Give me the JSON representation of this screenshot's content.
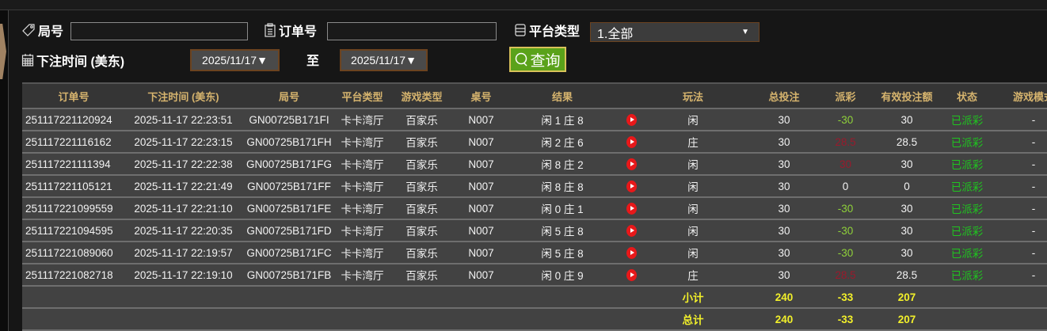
{
  "filters": {
    "round_label": "局号",
    "round_value": "",
    "order_label": "订单号",
    "order_value": "",
    "platform_label": "平台类型",
    "platform_value": "1.全部",
    "time_label": "下注时间 (美东)",
    "date_from": "2025/11/17▼",
    "to_label": "至",
    "date_to": "2025/11/17▼",
    "query_label": "查询"
  },
  "table": {
    "headers": [
      "订单号",
      "下注时间 (美东)",
      "局号",
      "平台类型",
      "游戏类型",
      "桌号",
      "结果",
      "",
      "玩法",
      "总投注",
      "派彩",
      "有效投注额",
      "状态",
      "游戏模式"
    ],
    "rows": [
      {
        "order": "251117221120924",
        "time": "2025-11-17 22:23:51",
        "round": "GN00725B171FI",
        "platform": "卡卡湾厅",
        "game": "百家乐",
        "table": "N007",
        "result": "闲 1 庄 8",
        "play": "闲",
        "bet": "30",
        "payout": "-30",
        "payout_color": "green",
        "valid": "30",
        "status": "已派彩",
        "mode": "-"
      },
      {
        "order": "251117221116162",
        "time": "2025-11-17 22:23:15",
        "round": "GN00725B171FH",
        "platform": "卡卡湾厅",
        "game": "百家乐",
        "table": "N007",
        "result": "闲 2 庄 6",
        "play": "庄",
        "bet": "30",
        "payout": "28.5",
        "payout_color": "red",
        "valid": "28.5",
        "status": "已派彩",
        "mode": "-"
      },
      {
        "order": "251117221111394",
        "time": "2025-11-17 22:22:38",
        "round": "GN00725B171FG",
        "platform": "卡卡湾厅",
        "game": "百家乐",
        "table": "N007",
        "result": "闲 8 庄 2",
        "play": "闲",
        "bet": "30",
        "payout": "30",
        "payout_color": "red",
        "valid": "30",
        "status": "已派彩",
        "mode": "-"
      },
      {
        "order": "251117221105121",
        "time": "2025-11-17 22:21:49",
        "round": "GN00725B171FF",
        "platform": "卡卡湾厅",
        "game": "百家乐",
        "table": "N007",
        "result": "闲 8 庄 8",
        "play": "闲",
        "bet": "30",
        "payout": "0",
        "payout_color": "white",
        "valid": "0",
        "status": "已派彩",
        "mode": "-"
      },
      {
        "order": "251117221099559",
        "time": "2025-11-17 22:21:10",
        "round": "GN00725B171FE",
        "platform": "卡卡湾厅",
        "game": "百家乐",
        "table": "N007",
        "result": "闲 0 庄 1",
        "play": "闲",
        "bet": "30",
        "payout": "-30",
        "payout_color": "green",
        "valid": "30",
        "status": "已派彩",
        "mode": "-"
      },
      {
        "order": "251117221094595",
        "time": "2025-11-17 22:20:35",
        "round": "GN00725B171FD",
        "platform": "卡卡湾厅",
        "game": "百家乐",
        "table": "N007",
        "result": "闲 5 庄 8",
        "play": "闲",
        "bet": "30",
        "payout": "-30",
        "payout_color": "green",
        "valid": "30",
        "status": "已派彩",
        "mode": "-"
      },
      {
        "order": "251117221089060",
        "time": "2025-11-17 22:19:57",
        "round": "GN00725B171FC",
        "platform": "卡卡湾厅",
        "game": "百家乐",
        "table": "N007",
        "result": "闲 5 庄 8",
        "play": "闲",
        "bet": "30",
        "payout": "-30",
        "payout_color": "green",
        "valid": "30",
        "status": "已派彩",
        "mode": "-"
      },
      {
        "order": "251117221082718",
        "time": "2025-11-17 22:19:10",
        "round": "GN00725B171FB",
        "platform": "卡卡湾厅",
        "game": "百家乐",
        "table": "N007",
        "result": "闲 0 庄 9",
        "play": "庄",
        "bet": "30",
        "payout": "28.5",
        "payout_color": "red",
        "valid": "28.5",
        "status": "已派彩",
        "mode": "-"
      }
    ],
    "subtotal": {
      "label": "小计",
      "bet": "240",
      "payout": "-33",
      "valid": "207"
    },
    "total": {
      "label": "总计",
      "bet": "240",
      "payout": "-33",
      "valid": "207"
    }
  },
  "icons": {
    "round": "tag-icon",
    "order": "clipboard-icon",
    "platform": "list-icon",
    "time": "calendar-icon",
    "query": "search-icon",
    "video": "play-icon"
  }
}
